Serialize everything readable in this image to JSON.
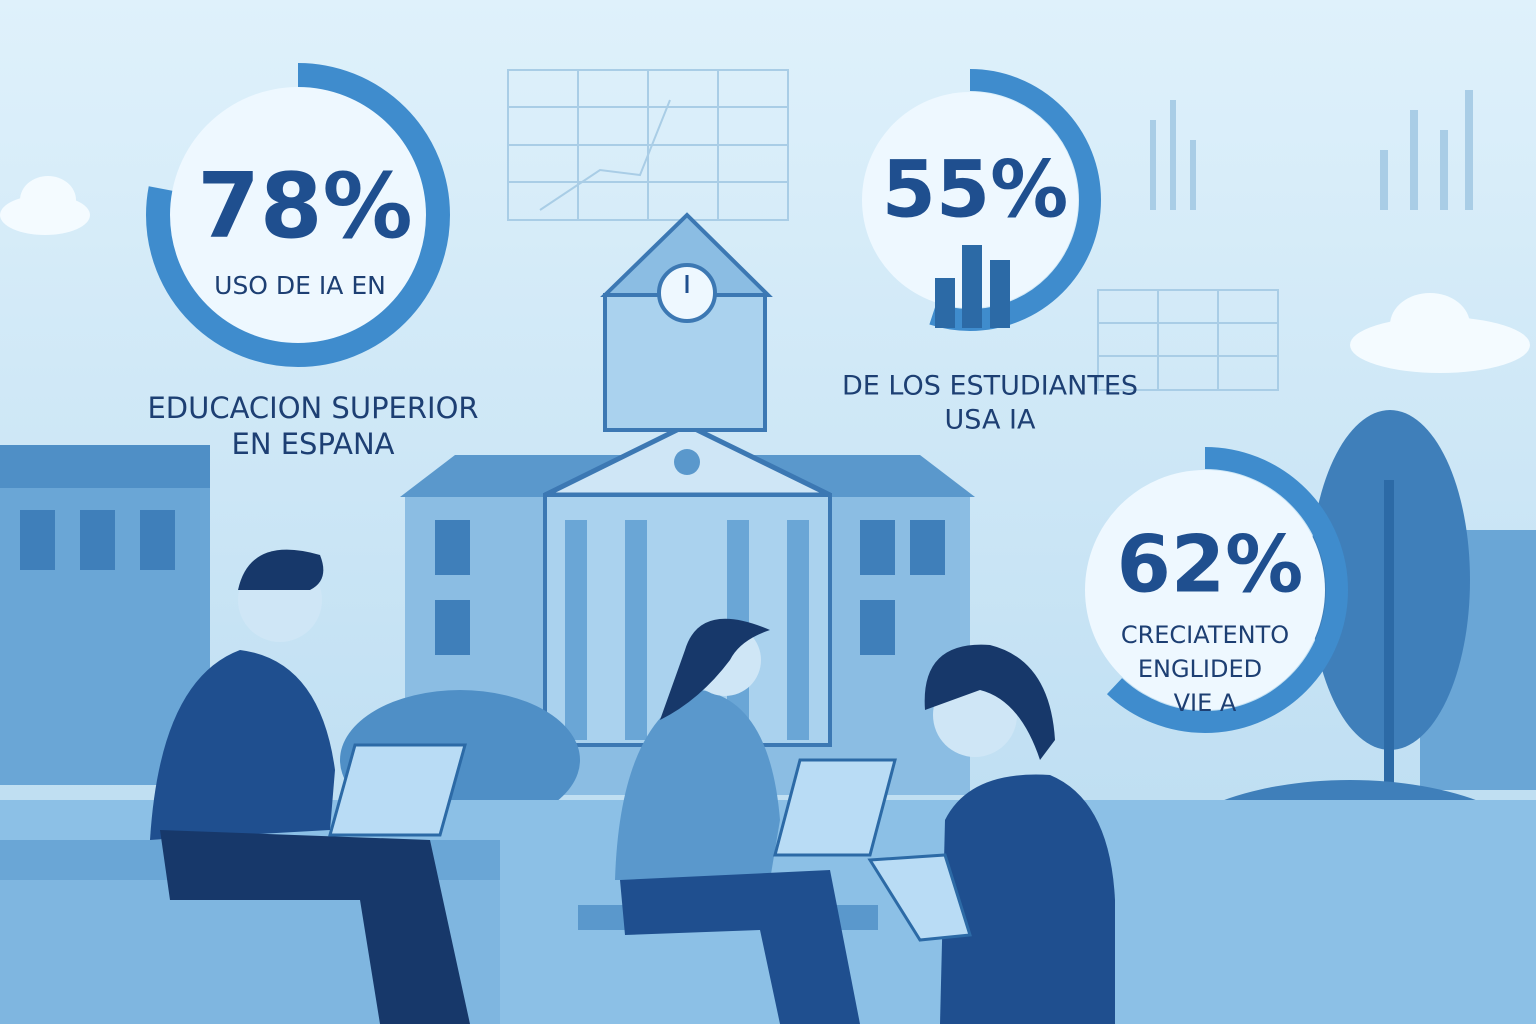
{
  "stats": [
    {
      "percent": {
        "value": 78,
        "label": "78%"
      },
      "inner_text": "USO DE IA EN",
      "caption": [
        "EDUCACION SUPERIOR",
        "EN ESPANA"
      ]
    },
    {
      "percent": {
        "value": 55,
        "label": "55%"
      },
      "caption": [
        "DE LOS ESTUDIANTES",
        "USA IA"
      ]
    },
    {
      "percent": {
        "value": 62,
        "label": "62%"
      },
      "inner_text": [
        "CRECIATENTO",
        "ENGLIDED",
        "VIE A"
      ]
    }
  ]
}
